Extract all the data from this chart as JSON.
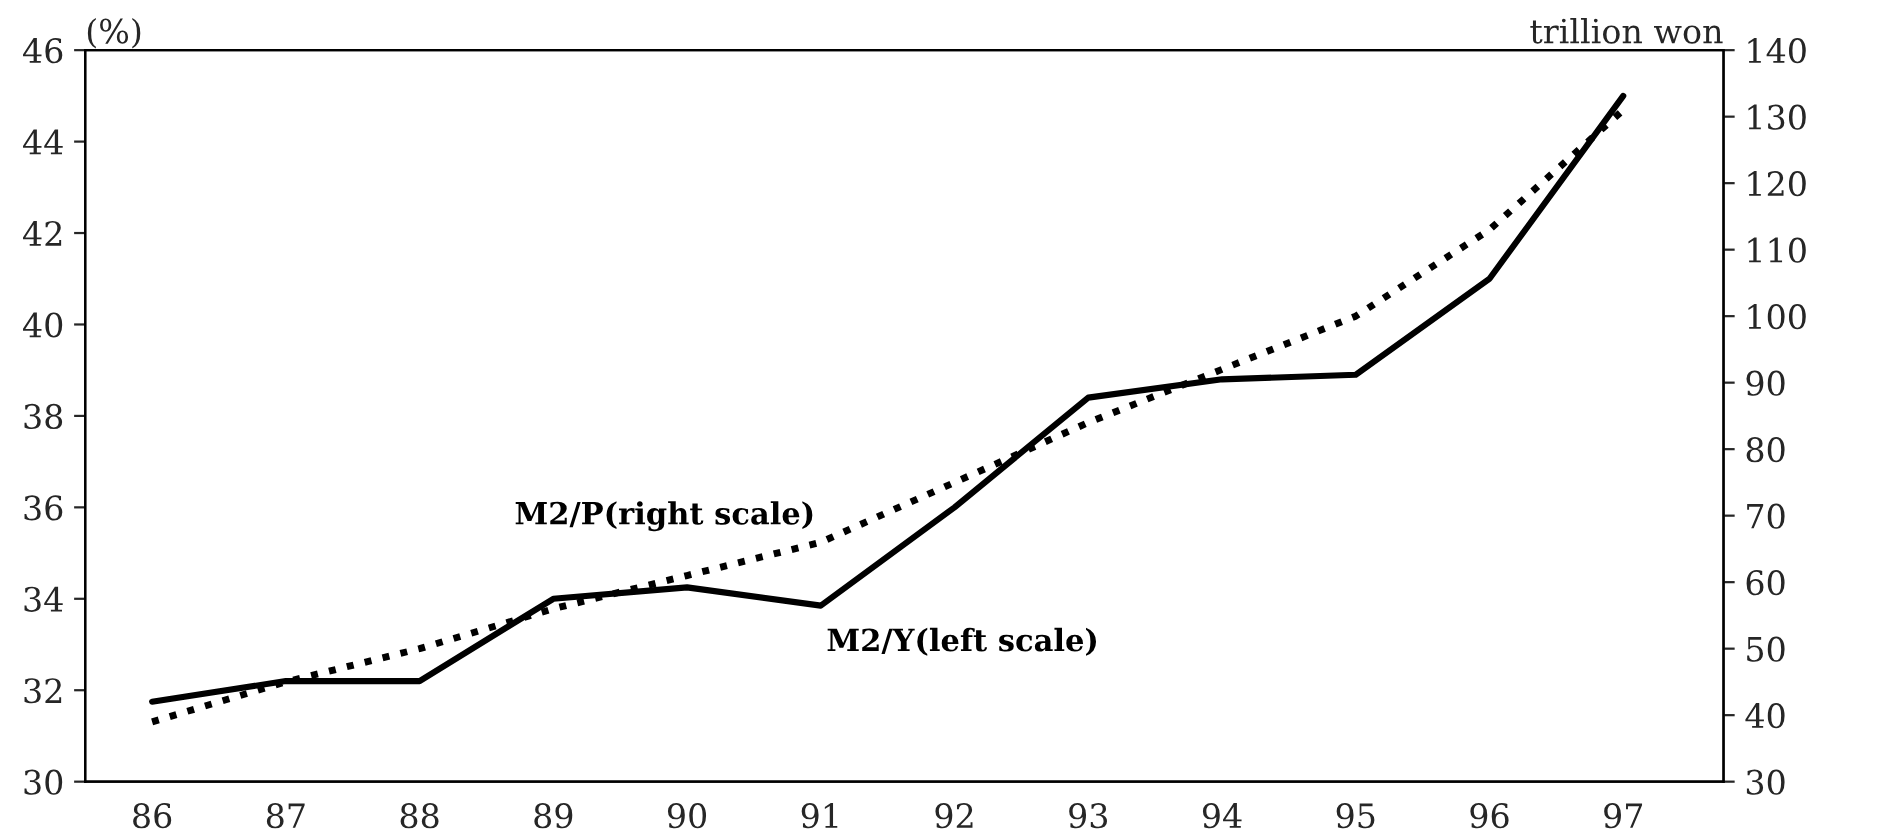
{
  "chart_data": {
    "type": "line",
    "categories": [
      "86",
      "87",
      "88",
      "89",
      "90",
      "91",
      "92",
      "93",
      "94",
      "95",
      "96",
      "97"
    ],
    "ylabel": "(%)",
    "y2label": "trillion won",
    "ylim": [
      30,
      46
    ],
    "yticks": [
      30,
      32,
      34,
      36,
      38,
      40,
      42,
      44,
      46
    ],
    "y2lim": [
      30,
      140
    ],
    "y2ticks": [
      30,
      40,
      50,
      60,
      70,
      80,
      90,
      100,
      110,
      120,
      130,
      140
    ],
    "grid": false,
    "legend": false,
    "series": [
      {
        "name": "M2/Y(left scale)",
        "color": "#000000",
        "line_style": "solid",
        "values": [
          31.75,
          32.2,
          32.2,
          34.0,
          34.25,
          33.85,
          36.0,
          38.4,
          38.8,
          38.9,
          41.0,
          45.0
        ]
      },
      {
        "name": "M2/P(right scale)",
        "color": "#000000",
        "line_style": "dotted",
        "axis": "y2",
        "values": [
          39,
          45,
          50,
          56,
          61,
          66,
          75,
          84,
          92,
          100,
          113,
          131
        ]
      }
    ]
  }
}
